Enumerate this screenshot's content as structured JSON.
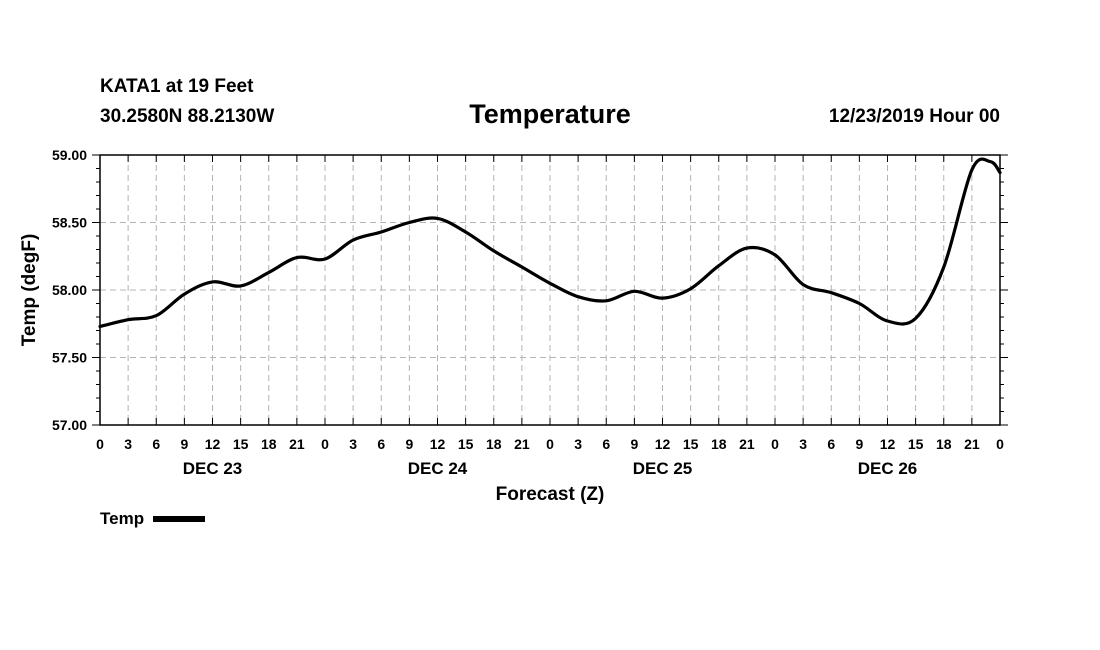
{
  "header": {
    "station": "KATA1 at 19 Feet",
    "coords": "30.2580N 88.2130W",
    "title": "Temperature",
    "timestamp": "12/23/2019 Hour 00"
  },
  "legend": {
    "label": "Temp",
    "color": "#000000"
  },
  "chart_data": {
    "type": "line",
    "title": "Temperature",
    "xlabel": "Forecast (Z)",
    "ylabel": "Temp (degF)",
    "ylim": [
      57.0,
      59.0
    ],
    "xlim": [
      0,
      96
    ],
    "grid": true,
    "legend_position": "bottom-left",
    "y_ticks": [
      "57.00",
      "57.50",
      "58.00",
      "58.50",
      "59.00"
    ],
    "x_tick_labels": [
      "0",
      "3",
      "6",
      "9",
      "12",
      "15",
      "18",
      "21",
      "0",
      "3",
      "6",
      "9",
      "12",
      "15",
      "18",
      "21",
      "0",
      "3",
      "6",
      "9",
      "12",
      "15",
      "18",
      "21",
      "0",
      "3",
      "6",
      "9",
      "12",
      "15",
      "18",
      "21",
      "0"
    ],
    "day_labels": [
      {
        "label": "DEC 23",
        "hour": 12
      },
      {
        "label": "DEC 24",
        "hour": 36
      },
      {
        "label": "DEC 25",
        "hour": 60
      },
      {
        "label": "DEC 26",
        "hour": 84
      }
    ],
    "series": [
      {
        "name": "Temp",
        "x": [
          0,
          3,
          6,
          9,
          12,
          15,
          18,
          21,
          24,
          27,
          30,
          33,
          36,
          39,
          42,
          45,
          48,
          51,
          54,
          57,
          60,
          63,
          66,
          69,
          72,
          75,
          78,
          81,
          84,
          87,
          90,
          93,
          95,
          96
        ],
        "values": [
          57.73,
          57.78,
          57.81,
          57.97,
          58.06,
          58.03,
          58.13,
          58.24,
          58.23,
          58.37,
          58.43,
          58.5,
          58.53,
          58.43,
          58.29,
          58.17,
          58.05,
          57.95,
          57.92,
          57.99,
          57.94,
          58.01,
          58.18,
          58.31,
          58.26,
          58.04,
          57.98,
          57.9,
          57.77,
          57.79,
          58.17,
          58.89,
          58.95,
          58.87
        ]
      }
    ]
  }
}
